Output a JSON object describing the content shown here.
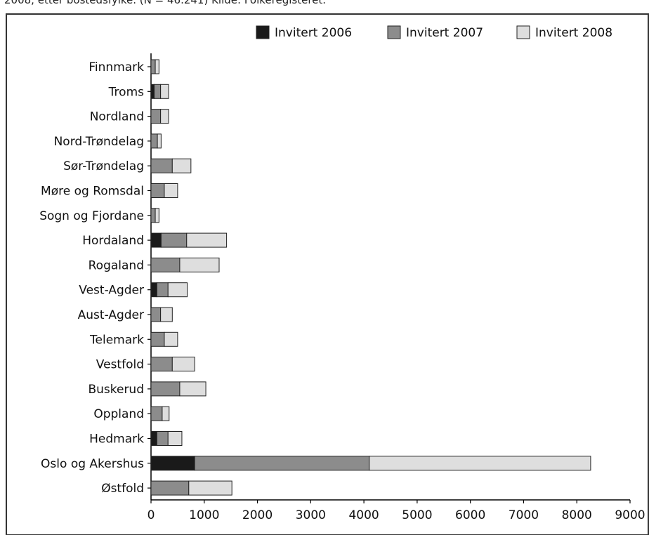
{
  "caption_fragment": "2008, etter bostedsfylke. (N = 46.241) Kilde: Folkeregisteret.",
  "chart_data": {
    "type": "bar",
    "orientation": "horizontal",
    "stacked": true,
    "title": "",
    "xlabel": "",
    "ylabel": "",
    "xlim": [
      0,
      9000
    ],
    "xticks": [
      0,
      1000,
      2000,
      3000,
      4000,
      5000,
      6000,
      7000,
      8000,
      9000
    ],
    "grid": false,
    "legend_position": "top-right",
    "categories": [
      "Finnmark",
      "Troms",
      "Nordland",
      "Nord-Trøndelag",
      "Sør-Trøndelag",
      "Møre og Romsdal",
      "Sogn og Fjordane",
      "Hordaland",
      "Rogaland",
      "Vest-Agder",
      "Aust-Agder",
      "Telemark",
      "Vestfold",
      "Buskerud",
      "Oppland",
      "Hedmark",
      "Oslo og Akershus",
      "Østfold"
    ],
    "series": [
      {
        "name": "Invitert 2006",
        "color": "#1a1a1a",
        "values": [
          0,
          60,
          0,
          0,
          0,
          0,
          0,
          190,
          0,
          110,
          0,
          0,
          0,
          0,
          0,
          110,
          820,
          0
        ]
      },
      {
        "name": "Invitert 2007",
        "color": "#8c8c8c",
        "values": [
          80,
          120,
          180,
          120,
          400,
          250,
          80,
          480,
          540,
          210,
          180,
          250,
          400,
          540,
          210,
          210,
          3280,
          710
        ]
      },
      {
        "name": "Invitert 2008",
        "color": "#dedede",
        "values": [
          70,
          150,
          150,
          70,
          350,
          250,
          70,
          750,
          740,
          360,
          220,
          250,
          420,
          490,
          130,
          260,
          4160,
          810
        ]
      }
    ]
  }
}
